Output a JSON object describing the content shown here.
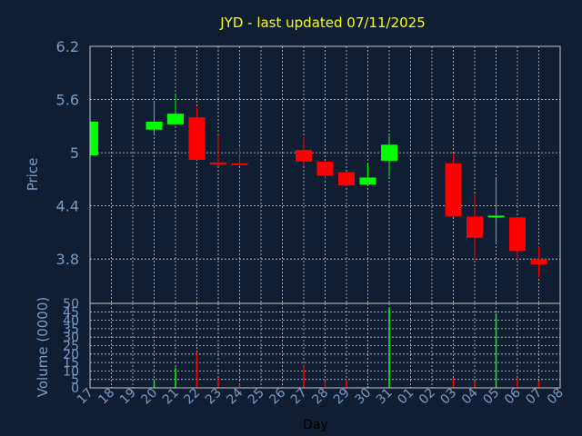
{
  "chart_data": [
    {
      "type": "candlestick",
      "title": "JYD - last updated 07/11/2025",
      "ylabel": "Price",
      "ylim": [
        3.3,
        6.2
      ],
      "yticks": [
        "6.2",
        "5.6",
        "5",
        "4.4",
        "3.8"
      ],
      "ytick_values": [
        6.2,
        5.6,
        5.0,
        4.4,
        3.8
      ],
      "grid": true,
      "up_color": "#00ff00",
      "down_color": "#ff0000",
      "candles": [
        {
          "day": "17",
          "open": 4.97,
          "high": 5.35,
          "low": 4.97,
          "close": 5.35
        },
        {
          "day": "20",
          "open": 5.26,
          "high": 5.58,
          "low": 5.2,
          "close": 5.35
        },
        {
          "day": "21",
          "open": 5.32,
          "high": 5.65,
          "low": 5.32,
          "close": 5.44
        },
        {
          "day": "22",
          "open": 5.4,
          "high": 5.51,
          "low": 4.92,
          "close": 4.92
        },
        {
          "day": "23",
          "open": 4.89,
          "high": 5.2,
          "low": 4.85,
          "close": 4.87
        },
        {
          "day": "24",
          "open": 4.88,
          "high": 5.07,
          "low": 4.85,
          "close": 4.86
        },
        {
          "day": "27",
          "open": 5.03,
          "high": 5.18,
          "low": 4.85,
          "close": 4.9
        },
        {
          "day": "28",
          "open": 4.9,
          "high": 4.9,
          "low": 4.7,
          "close": 4.74
        },
        {
          "day": "29",
          "open": 4.78,
          "high": 4.78,
          "low": 4.62,
          "close": 4.63
        },
        {
          "day": "30",
          "open": 4.64,
          "high": 4.87,
          "low": 4.64,
          "close": 4.72
        },
        {
          "day": "31",
          "open": 4.91,
          "high": 5.19,
          "low": 4.73,
          "close": 5.09
        },
        {
          "day": "03",
          "open": 4.88,
          "high": 4.99,
          "low": 4.28,
          "close": 4.28
        },
        {
          "day": "04",
          "open": 4.28,
          "high": 4.54,
          "low": 3.79,
          "close": 4.04
        },
        {
          "day": "05",
          "open": 4.27,
          "high": 4.71,
          "low": 3.99,
          "close": 4.29
        },
        {
          "day": "06",
          "open": 4.27,
          "high": 4.27,
          "low": 3.8,
          "close": 3.89
        },
        {
          "day": "07",
          "open": 3.8,
          "high": 3.94,
          "low": 3.59,
          "close": 3.74
        }
      ]
    },
    {
      "type": "bar",
      "ylabel": "Volume (0000)",
      "ylim": [
        0,
        50
      ],
      "yticks": [
        "50",
        "45",
        "40",
        "35",
        "30",
        "25",
        "20",
        "15",
        "10",
        "5",
        "0"
      ],
      "ytick_values": [
        50,
        45,
        40,
        35,
        30,
        25,
        20,
        15,
        10,
        5,
        0
      ],
      "xlabel": "Day",
      "categories": [
        "17",
        "18",
        "19",
        "20",
        "21",
        "22",
        "23",
        "24",
        "25",
        "26",
        "27",
        "28",
        "29",
        "30",
        "31",
        "01",
        "02",
        "03",
        "04",
        "05",
        "06",
        "07",
        "08"
      ],
      "bars": [
        {
          "day": "17",
          "value": 0,
          "color": "#00ff00"
        },
        {
          "day": "20",
          "value": 4,
          "color": "#00ff00"
        },
        {
          "day": "21",
          "value": 12,
          "color": "#00ff00"
        },
        {
          "day": "22",
          "value": 21,
          "color": "#ff0000"
        },
        {
          "day": "23",
          "value": 6,
          "color": "#ff0000"
        },
        {
          "day": "24",
          "value": 2,
          "color": "#ff0000"
        },
        {
          "day": "27",
          "value": 13,
          "color": "#ff0000"
        },
        {
          "day": "28",
          "value": 4,
          "color": "#ff0000"
        },
        {
          "day": "29",
          "value": 5,
          "color": "#ff0000"
        },
        {
          "day": "30",
          "value": 1,
          "color": "#00ff00"
        },
        {
          "day": "31",
          "value": 47,
          "color": "#00ff00"
        },
        {
          "day": "03",
          "value": 6,
          "color": "#ff0000"
        },
        {
          "day": "04",
          "value": 4,
          "color": "#ff0000"
        },
        {
          "day": "05",
          "value": 44,
          "color": "#00ff00"
        },
        {
          "day": "06",
          "value": 6,
          "color": "#ff0000"
        },
        {
          "day": "07",
          "value": 4,
          "color": "#ff0000"
        }
      ]
    }
  ]
}
